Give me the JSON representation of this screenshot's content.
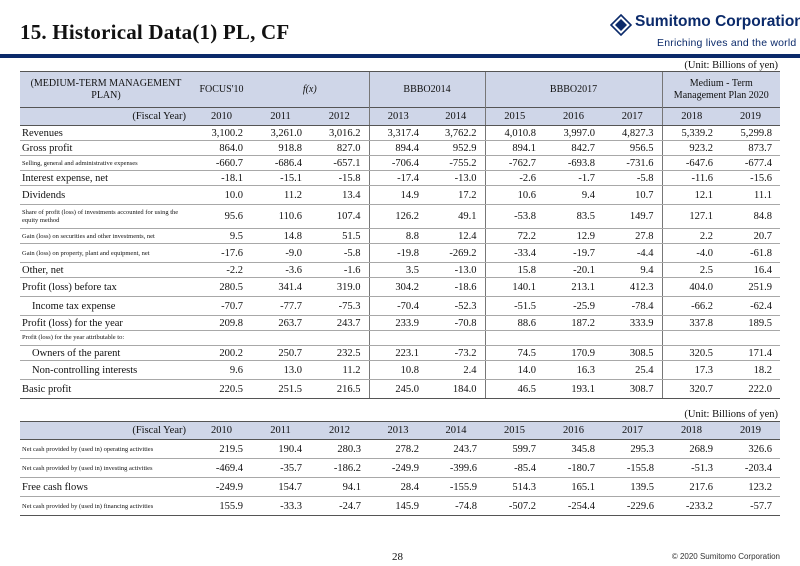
{
  "header": {
    "title": "15. Historical Data(1) PL, CF",
    "logo_name": "Sumitomo Corporation",
    "logo_tagline": "Enriching lives and the world"
  },
  "colors": {
    "brand": "#0b2a6a",
    "header_fill": "#cfd6e8"
  },
  "pl": {
    "unit": "(Unit: Billions of yen)",
    "plan_label": "(MEDIUM-TERM MANAGEMENT PLAN)",
    "plans": {
      "focus10": "FOCUS'10",
      "fx": "f(x)",
      "bbbo2014": "BBBO2014",
      "bbbo2017": "BBBO2017",
      "mtp2020": "Medium - Term Management Plan 2020"
    },
    "fiscal_label": "(Fiscal Year)",
    "years": [
      "2010",
      "2011",
      "2012",
      "2013",
      "2014",
      "2015",
      "2016",
      "2017",
      "2018",
      "2019"
    ],
    "rows": [
      {
        "label": "Revenues",
        "values": [
          "3,100.2",
          "3,261.0",
          "3,016.2",
          "3,317.4",
          "3,762.2",
          "4,010.8",
          "3,997.0",
          "4,827.3",
          "5,339.2",
          "5,299.8"
        ]
      },
      {
        "label": "Gross profit",
        "values": [
          "864.0",
          "918.8",
          "827.0",
          "894.4",
          "952.9",
          "894.1",
          "842.7",
          "956.5",
          "923.2",
          "873.7"
        ]
      },
      {
        "label": "Selling, general and administrative expenses",
        "values": [
          "-660.7",
          "-686.4",
          "-657.1",
          "-706.4",
          "-755.2",
          "-762.7",
          "-693.8",
          "-731.6",
          "-647.6",
          "-677.4"
        ]
      },
      {
        "label": "Interest expense, net",
        "values": [
          "-18.1",
          "-15.1",
          "-15.8",
          "-17.4",
          "-13.0",
          "-2.6",
          "-1.7",
          "-5.8",
          "-11.6",
          "-15.6"
        ]
      },
      {
        "label": "Dividends",
        "values": [
          "10.0",
          "11.2",
          "13.4",
          "14.9",
          "17.2",
          "10.6",
          "9.4",
          "10.7",
          "12.1",
          "11.1"
        ]
      },
      {
        "label": "Share of profit (loss) of investments accounted for using the equity method",
        "values": [
          "95.6",
          "110.6",
          "107.4",
          "126.2",
          "49.1",
          "-53.8",
          "83.5",
          "149.7",
          "127.1",
          "84.8"
        ]
      },
      {
        "label": "Gain (loss) on securities and other investments, net",
        "values": [
          "9.5",
          "14.8",
          "51.5",
          "8.8",
          "12.4",
          "72.2",
          "12.9",
          "27.8",
          "2.2",
          "20.7"
        ]
      },
      {
        "label": "Gain (loss) on property, plant and equipment, net",
        "values": [
          "-17.6",
          "-9.0",
          "-5.8",
          "-19.8",
          "-269.2",
          "-33.4",
          "-19.7",
          "-4.4",
          "-4.0",
          "-61.8"
        ]
      },
      {
        "label": "Other, net",
        "values": [
          "-2.2",
          "-3.6",
          "-1.6",
          "3.5",
          "-13.0",
          "15.8",
          "-20.1",
          "9.4",
          "2.5",
          "16.4"
        ]
      },
      {
        "label": "Profit (loss) before tax",
        "values": [
          "280.5",
          "341.4",
          "319.0",
          "304.2",
          "-18.6",
          "140.1",
          "213.1",
          "412.3",
          "404.0",
          "251.9"
        ]
      },
      {
        "label": "Income tax expense",
        "values": [
          "-70.7",
          "-77.7",
          "-75.3",
          "-70.4",
          "-52.3",
          "-51.5",
          "-25.9",
          "-78.4",
          "-66.2",
          "-62.4"
        ]
      },
      {
        "label": "Profit (loss) for the year",
        "values": [
          "209.8",
          "263.7",
          "243.7",
          "233.9",
          "-70.8",
          "88.6",
          "187.2",
          "333.9",
          "337.8",
          "189.5"
        ]
      },
      {
        "label": "Profit (loss) for the year attributable to:",
        "values": [
          "",
          "",
          "",
          "",
          "",
          "",
          "",
          "",
          "",
          ""
        ]
      },
      {
        "label": "Owners of the parent",
        "values": [
          "200.2",
          "250.7",
          "232.5",
          "223.1",
          "-73.2",
          "74.5",
          "170.9",
          "308.5",
          "320.5",
          "171.4"
        ]
      },
      {
        "label": "Non-controlling interests",
        "values": [
          "9.6",
          "13.0",
          "11.2",
          "10.8",
          "2.4",
          "14.0",
          "16.3",
          "25.4",
          "17.3",
          "18.2"
        ]
      },
      {
        "label": "Basic profit",
        "values": [
          "220.5",
          "251.5",
          "216.5",
          "245.0",
          "184.0",
          "46.5",
          "193.1",
          "308.7",
          "320.7",
          "222.0"
        ]
      }
    ]
  },
  "cf": {
    "unit": "(Unit: Billions of yen)",
    "fiscal_label": "(Fiscal Year)",
    "years": [
      "2010",
      "2011",
      "2012",
      "2013",
      "2014",
      "2015",
      "2016",
      "2017",
      "2018",
      "2019"
    ],
    "rows": [
      {
        "label": "Net cash provided by (used in) operating activities",
        "values": [
          "219.5",
          "190.4",
          "280.3",
          "278.2",
          "243.7",
          "599.7",
          "345.8",
          "295.3",
          "268.9",
          "326.6"
        ]
      },
      {
        "label": "Net cash provided by (used in) investing activities",
        "values": [
          "-469.4",
          "-35.7",
          "-186.2",
          "-249.9",
          "-399.6",
          "-85.4",
          "-180.7",
          "-155.8",
          "-51.3",
          "-203.4"
        ]
      },
      {
        "label": "Free cash flows",
        "values": [
          "-249.9",
          "154.7",
          "94.1",
          "28.4",
          "-155.9",
          "514.3",
          "165.1",
          "139.5",
          "217.6",
          "123.2"
        ]
      },
      {
        "label": "Net cash provided by (used in) financing activities",
        "values": [
          "155.9",
          "-33.3",
          "-24.7",
          "145.9",
          "-74.8",
          "-507.2",
          "-254.4",
          "-229.6",
          "-233.2",
          "-57.7"
        ]
      }
    ]
  },
  "footer": {
    "page_number": "28",
    "copyright": "© 2020 Sumitomo Corporation"
  }
}
